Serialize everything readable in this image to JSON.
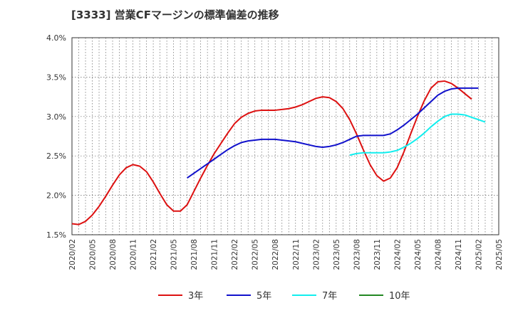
{
  "chart_data": {
    "type": "line",
    "title": "[3333]  営業CFマージンの標準偏差の推移",
    "xlabel": "",
    "ylabel": "",
    "ylim": [
      1.5,
      4.0
    ],
    "y_ticks": [
      "1.5%",
      "2.0%",
      "2.5%",
      "3.0%",
      "3.5%",
      "4.0%"
    ],
    "x_ticks": [
      "2020/02",
      "2020/05",
      "2020/08",
      "2020/11",
      "2021/02",
      "2021/05",
      "2021/08",
      "2021/11",
      "2022/02",
      "2022/05",
      "2022/08",
      "2022/11",
      "2023/02",
      "2023/05",
      "2023/08",
      "2023/11",
      "2024/02",
      "2024/05",
      "2024/08",
      "2024/11",
      "2025/02",
      "2025/05"
    ],
    "x_range": [
      "2020/02",
      "2025/05"
    ],
    "grid": true,
    "legend_position": "bottom",
    "series": [
      {
        "name": "3年",
        "color": "#dd1111",
        "start": "2020/02",
        "values": [
          1.64,
          1.63,
          1.67,
          1.75,
          1.86,
          1.99,
          2.13,
          2.26,
          2.35,
          2.39,
          2.37,
          2.3,
          2.17,
          2.02,
          1.88,
          1.8,
          1.8,
          1.88,
          2.05,
          2.22,
          2.38,
          2.53,
          2.66,
          2.79,
          2.91,
          2.99,
          3.04,
          3.07,
          3.08,
          3.08,
          3.08,
          3.09,
          3.1,
          3.12,
          3.15,
          3.19,
          3.23,
          3.25,
          3.24,
          3.19,
          3.1,
          2.96,
          2.78,
          2.58,
          2.39,
          2.25,
          2.18,
          2.22,
          2.35,
          2.55,
          2.78,
          3.0,
          3.2,
          3.36,
          3.44,
          3.45,
          3.42,
          3.36,
          3.29,
          3.22
        ]
      },
      {
        "name": "5年",
        "color": "#1111cc",
        "start": "2021/07",
        "values": [
          2.22,
          2.28,
          2.34,
          2.4,
          2.46,
          2.52,
          2.58,
          2.63,
          2.67,
          2.69,
          2.7,
          2.71,
          2.71,
          2.71,
          2.7,
          2.69,
          2.68,
          2.66,
          2.64,
          2.62,
          2.61,
          2.62,
          2.64,
          2.67,
          2.71,
          2.75,
          2.76,
          2.76,
          2.76,
          2.76,
          2.78,
          2.83,
          2.89,
          2.96,
          3.03,
          3.11,
          3.19,
          3.27,
          3.32,
          3.35,
          3.36,
          3.36,
          3.36,
          3.36
        ]
      },
      {
        "name": "7年",
        "color": "#11eeee",
        "start": "2023/07",
        "values": [
          2.51,
          2.53,
          2.54,
          2.54,
          2.54,
          2.54,
          2.55,
          2.57,
          2.61,
          2.66,
          2.72,
          2.79,
          2.87,
          2.94,
          3.0,
          3.03,
          3.03,
          3.02,
          2.99,
          2.96,
          2.93
        ]
      },
      {
        "name": "10年",
        "color": "#228822",
        "start": "",
        "values": []
      }
    ]
  }
}
